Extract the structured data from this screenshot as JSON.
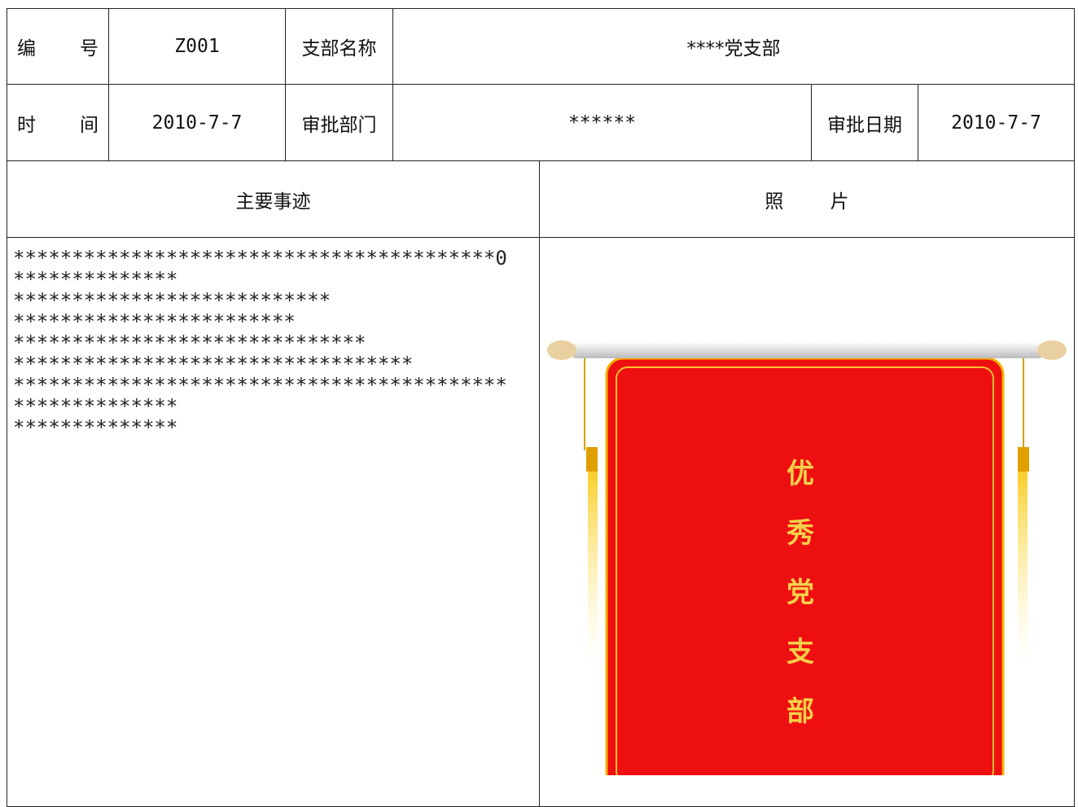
{
  "header": {
    "number_label": "编 号",
    "number": "Z001",
    "branch_label": "支部名称",
    "branch": "****党支部",
    "time_label": "时 间",
    "time": "2010-7-7",
    "dept_label": "审批部门",
    "dept": "******",
    "date_label": "审批日期",
    "date": "2010-7-7"
  },
  "sections": {
    "deeds_label": "主要事迹",
    "photo_label": "照 片",
    "deeds_lines": [
      "*****************************************0",
      "**************",
      "***************************",
      "************************",
      "******************************",
      "**********************************",
      "******************************************",
      "**************",
      "**************"
    ]
  },
  "photo": {
    "banner_text": [
      "优",
      "秀",
      "党",
      "支",
      "部"
    ]
  }
}
